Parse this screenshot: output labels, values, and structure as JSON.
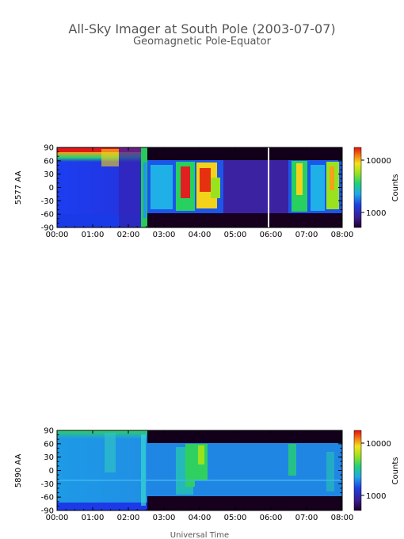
{
  "title": "All-Sky Imager at South Pole (2003-07-07)",
  "subtitle": "Geomagnetic Pole-Equator",
  "xlabel": "Universal Time",
  "chart_data": [
    {
      "type": "heatmap",
      "ylabel": "5577 AA",
      "colorbar_label": "Counts",
      "colorbar_ticks": [
        "10000",
        "1000"
      ],
      "colorbar_scale": "log",
      "x_ticks": [
        "00:00",
        "01:00",
        "02:00",
        "03:00",
        "04:00",
        "05:00",
        "06:00",
        "07:00",
        "08:00"
      ],
      "y_ticks": [
        "90",
        "60",
        "30",
        "0",
        "-30",
        "-60",
        "-90"
      ],
      "xlim": [
        "00:00",
        "08:00"
      ],
      "ylim": [
        -90,
        90
      ]
    },
    {
      "type": "heatmap",
      "ylabel": "5890 AA",
      "colorbar_label": "Counts",
      "colorbar_ticks": [
        "10000",
        "1000"
      ],
      "colorbar_scale": "log",
      "x_ticks": [
        "00:00",
        "01:00",
        "02:00",
        "03:00",
        "04:00",
        "05:00",
        "06:00",
        "07:00",
        "08:00"
      ],
      "y_ticks": [
        "90",
        "60",
        "30",
        "0",
        "-30",
        "-60",
        "-90"
      ],
      "xlim": [
        "00:00",
        "08:00"
      ],
      "ylim": [
        -90,
        90
      ]
    }
  ]
}
